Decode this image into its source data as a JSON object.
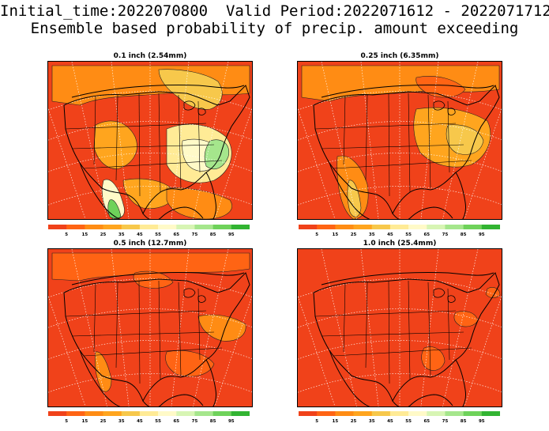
{
  "header": {
    "line1": "Initial_time:2022070800  Valid Period:2022071612 - 2022071712",
    "line2": "Ensemble based probability of precip. amount exceeding"
  },
  "colors": {
    "scale": [
      "#f0421a",
      "#ff6414",
      "#ff8c14",
      "#ffa51e",
      "#f7c84b",
      "#ffeb96",
      "#fffac8",
      "#d7f5b4",
      "#a5e68c",
      "#6ed25a",
      "#32b432"
    ]
  },
  "colorbar": {
    "ticks": [
      "5",
      "15",
      "25",
      "35",
      "45",
      "55",
      "65",
      "75",
      "85",
      "95"
    ]
  },
  "panels": [
    {
      "title": "0.1 inch (2.54mm)"
    },
    {
      "title": "0.25 inch (6.35mm)"
    },
    {
      "title": "0.5 inch (12.7mm)"
    },
    {
      "title": "1.0 inch (25.4mm)"
    }
  ]
}
